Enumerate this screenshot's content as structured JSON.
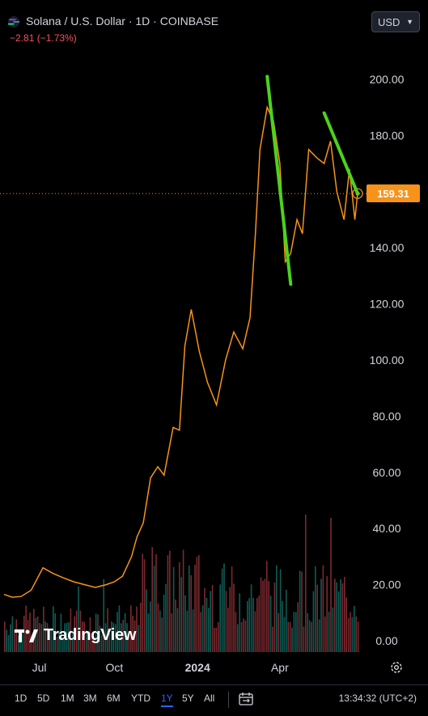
{
  "header": {
    "title": "Solana / U.S. Dollar · 1D · COINBASE",
    "change": "−2.81 (−1.73%)",
    "currency": "USD"
  },
  "current_price": "159.31",
  "watermark": "TradingView",
  "footer": {
    "ranges": [
      "1D",
      "5D",
      "1M",
      "3M",
      "6M",
      "YTD",
      "1Y",
      "5Y",
      "All"
    ],
    "active_range": "1Y",
    "time": "13:34:32 (UTC+2)"
  },
  "colors": {
    "price_line": "#f7931a",
    "annotation": "#4cd31c",
    "volume_up": "#0e5c55",
    "volume_down": "#7a2a2f",
    "background": "#000000"
  },
  "chart_data": {
    "type": "line",
    "title": "Solana / U.S. Dollar · 1D · COINBASE",
    "x_tick_labels": [
      "Jul",
      "Oct",
      "2024",
      "Apr"
    ],
    "y_tick_labels": [
      "200.00",
      "180.00",
      "160.00",
      "140.00",
      "120.00",
      "100.00",
      "80.00",
      "60.00",
      "40.00",
      "20.00",
      "0.00"
    ],
    "ylim": [
      0,
      210
    ],
    "series": [
      {
        "x": [
          "2023-06-01",
          "2023-06-10",
          "2023-06-20",
          "2023-07-01",
          "2023-07-14",
          "2023-07-25",
          "2023-08-05",
          "2023-08-17",
          "2023-08-29",
          "2023-09-10",
          "2023-09-22",
          "2023-10-01",
          "2023-10-10",
          "2023-10-20",
          "2023-10-26",
          "2023-11-02",
          "2023-11-10",
          "2023-11-18",
          "2023-11-25",
          "2023-12-05",
          "2023-12-12",
          "2023-12-18",
          "2023-12-25",
          "2024-01-03",
          "2024-01-12",
          "2024-01-22",
          "2024-02-01",
          "2024-02-10",
          "2024-02-20",
          "2024-02-28",
          "2024-03-05",
          "2024-03-10",
          "2024-03-18",
          "2024-03-25",
          "2024-04-01",
          "2024-04-07",
          "2024-04-13",
          "2024-04-20",
          "2024-04-26",
          "2024-05-03",
          "2024-05-12",
          "2024-05-20",
          "2024-05-27",
          "2024-06-03",
          "2024-06-11",
          "2024-06-17",
          "2024-06-23",
          "2024-06-26"
        ],
        "values": [
          16.5,
          15.5,
          15.8,
          18,
          26,
          24,
          22.5,
          21,
          20,
          19,
          20,
          21,
          23,
          30,
          37,
          42,
          58,
          62,
          59,
          76,
          75,
          105,
          118,
          103,
          92,
          84,
          100,
          110,
          104,
          115,
          145,
          175,
          190,
          185,
          170,
          135,
          138,
          150,
          145,
          175,
          172,
          170,
          178,
          160,
          150,
          168,
          150,
          159.31
        ]
      }
    ],
    "annotations": [
      {
        "type": "trend_line",
        "from": [
          "2024-03-18",
          201
        ],
        "to": [
          "2024-04-13",
          127
        ]
      },
      {
        "type": "trend_line",
        "from": [
          "2024-05-20",
          188
        ],
        "to": [
          "2024-06-26",
          159.31
        ]
      }
    ]
  }
}
